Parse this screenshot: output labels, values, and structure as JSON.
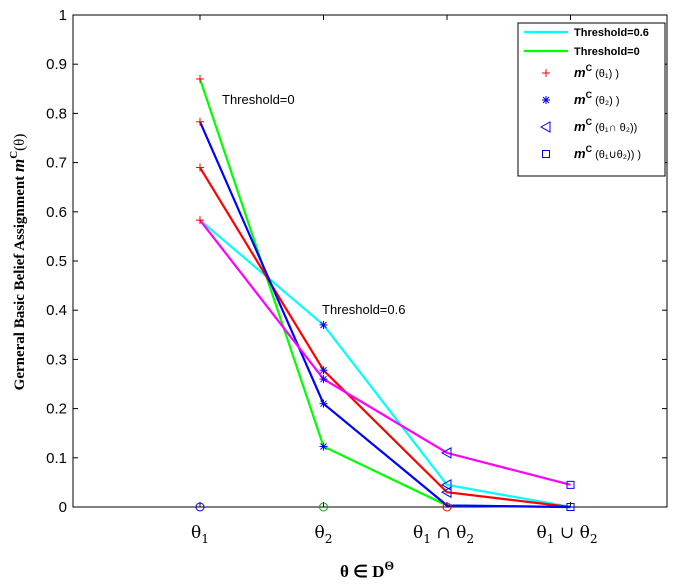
{
  "chart_data": {
    "type": "line",
    "categories": [
      "θ₁",
      "θ₂",
      "θ₁ ∩ θ₂",
      "θ₁ ∪ θ₂"
    ],
    "xlabel": "θ ∈ D^Θ",
    "ylabel": "Gerneral Basic Belief Assignment",
    "ylabel_math": "m^C(θ)",
    "ylim": [
      0,
      1
    ],
    "yticks": [
      "0",
      "0.1",
      "0.2",
      "0.3",
      "0.4",
      "0.5",
      "0.6",
      "0.7",
      "0.8",
      "0.9",
      "1"
    ],
    "grid": false,
    "legend_position": "top-right",
    "annotations": [
      {
        "text": "Threshold=0",
        "near": "θ₁"
      },
      {
        "text": "Threshold=0.6",
        "near": "θ₂"
      }
    ],
    "series": [
      {
        "name": "Threshold=0.6",
        "color": "#00ffff",
        "values": [
          0.583,
          0.37,
          0.045,
          0.0
        ]
      },
      {
        "name": "Threshold=0",
        "color": "#00ff00",
        "values": [
          0.87,
          0.123,
          0.003,
          0.0
        ]
      },
      {
        "color": "#ff0000",
        "values": [
          0.69,
          0.278,
          0.03,
          0.0
        ]
      },
      {
        "color": "#0000ff",
        "values": [
          0.783,
          0.21,
          0.003,
          0.0
        ]
      },
      {
        "color": "#ff00ff",
        "values": [
          0.583,
          0.26,
          0.11,
          0.045
        ]
      }
    ],
    "marker_series": [
      {
        "legend": "m^C (θ₁) )",
        "marker": "plus",
        "color": "#ff0000",
        "points": [
          [
            0,
            0.87
          ],
          [
            0,
            0.783
          ],
          [
            0,
            0.69
          ],
          [
            0,
            0.583
          ]
        ]
      },
      {
        "legend": "m^C (θ₂) )",
        "marker": "star",
        "color": "#0000ff",
        "points": [
          [
            1,
            0.37
          ],
          [
            1,
            0.278
          ],
          [
            1,
            0.26
          ],
          [
            1,
            0.21
          ],
          [
            1,
            0.123
          ]
        ]
      },
      {
        "legend": "m^C (θ₁∩ θ₂))",
        "marker": "triangle-left",
        "color": "#0000ff",
        "points": [
          [
            2,
            0.11
          ],
          [
            2,
            0.045
          ],
          [
            2,
            0.03
          ]
        ]
      },
      {
        "legend": "m^C (θ₁∪θ₂)) )",
        "marker": "square",
        "color": "#0000ff",
        "points": [
          [
            3,
            0.045
          ],
          [
            3,
            0.0
          ]
        ]
      }
    ],
    "zero_markers": [
      {
        "cat": 0,
        "color": "#0000ff"
      },
      {
        "cat": 1,
        "color": "#00aa00"
      },
      {
        "cat": 2,
        "color": "#ff0000"
      }
    ]
  }
}
